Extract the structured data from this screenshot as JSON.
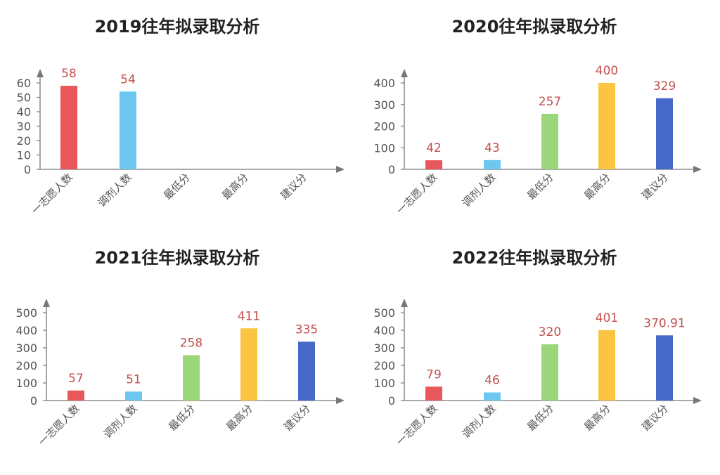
{
  "colors": {
    "axis": "#777777",
    "title": "#222222",
    "tick": "#555555",
    "data_label": "#c0504d",
    "bars": [
      "#e8585a",
      "#6cc8f0",
      "#9bd67a",
      "#fbc443",
      "#4668c8"
    ]
  },
  "chart_data": [
    {
      "type": "bar",
      "title": "2019往年拟录取分析",
      "categories": [
        "一志愿人数",
        "调剂人数",
        "最低分",
        "最高分",
        "建议分"
      ],
      "values": [
        58,
        54,
        null,
        null,
        null
      ],
      "data_labels": [
        "58",
        "54",
        "",
        "",
        ""
      ],
      "yticks": [
        "0",
        "10",
        "20",
        "30",
        "40",
        "50",
        "60"
      ],
      "ylim": [
        0,
        60
      ],
      "grid": false,
      "legend": "none"
    },
    {
      "type": "bar",
      "title": "2020往年拟录取分析",
      "categories": [
        "一志愿人数",
        "调剂人数",
        "最低分",
        "最高分",
        "建议分"
      ],
      "values": [
        42,
        43,
        257,
        400,
        329
      ],
      "data_labels": [
        "42",
        "43",
        "257",
        "400",
        "329"
      ],
      "yticks": [
        "0",
        "100",
        "200",
        "300",
        "400"
      ],
      "ylim": [
        0,
        400
      ],
      "grid": false,
      "legend": "none"
    },
    {
      "type": "bar",
      "title": "2021往年拟录取分析",
      "categories": [
        "一志愿人数",
        "调剂人数",
        "最低分",
        "最高分",
        "建议分"
      ],
      "values": [
        57,
        51,
        258,
        411,
        335
      ],
      "data_labels": [
        "57",
        "51",
        "258",
        "411",
        "335"
      ],
      "yticks": [
        "0",
        "100",
        "200",
        "300",
        "400",
        "500"
      ],
      "ylim": [
        0,
        500
      ],
      "grid": false,
      "legend": "none"
    },
    {
      "type": "bar",
      "title": "2022往年拟录取分析",
      "categories": [
        "一志愿人数",
        "调剂人数",
        "最低分",
        "最高分",
        "建议分"
      ],
      "values": [
        79,
        46,
        320,
        401,
        370.91
      ],
      "data_labels": [
        "79",
        "46",
        "320",
        "401",
        "370.91"
      ],
      "yticks": [
        "0",
        "100",
        "200",
        "300",
        "400",
        "500"
      ],
      "ylim": [
        0,
        500
      ],
      "grid": false,
      "legend": "none"
    }
  ]
}
